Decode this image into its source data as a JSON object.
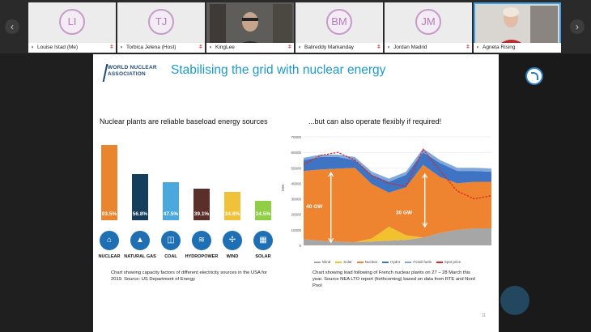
{
  "participants": [
    {
      "initials": "LI",
      "name": "Louise Istad (Me)",
      "muted": true
    },
    {
      "initials": "TJ",
      "name": "Torbica Jelena (Host)",
      "muted": true
    },
    {
      "initials": "",
      "name": "KingLee",
      "muted": true,
      "video": true
    },
    {
      "initials": "BM",
      "name": "Balireddy Markanday",
      "muted": true
    },
    {
      "initials": "JM",
      "name": "Jordan Madrid",
      "muted": true
    },
    {
      "initials": "",
      "name": "Agneta Rising",
      "muted": false,
      "video": true,
      "active": true
    }
  ],
  "nav": {
    "prev_icon": "‹",
    "next_icon": "›"
  },
  "slide": {
    "logo_line1": "WORLD NUCLEAR",
    "logo_line2": "ASSOCIATION",
    "title": "Stabilising the grid with nuclear energy",
    "left_heading": "Nuclear plants are reliable baseload energy sources",
    "right_heading": "...but can also operate flexibly if required!",
    "left_caption": "Chart showing capacity factors of different electricity sources in the USA for 2019. Source: US Department of Energy",
    "right_caption": "Chart showing load following of French nuclear plants on 27 – 28 March this year. Source NEA LTO report (forthcoming) based on data from RTE and Nord Pool",
    "page_number": "11"
  },
  "chart_data": [
    {
      "type": "bar",
      "categories": [
        "NUCLEAR",
        "NATURAL GAS",
        "COAL",
        "HYDROPOWER",
        "WIND",
        "SOLAR"
      ],
      "values": [
        93.5,
        56.8,
        47.5,
        39.1,
        34.8,
        24.5
      ],
      "value_labels": [
        "93.5%",
        "56.8%",
        "47.5%",
        "39.1%",
        "34.8%",
        "24.5%"
      ],
      "colors": [
        "#e8852e",
        "#153e5c",
        "#4aa8dd",
        "#5b2e2a",
        "#efc23a",
        "#8fce45"
      ],
      "icons": [
        "reactor-icon",
        "gas-flame-icon",
        "coal-cart-icon",
        "dam-icon",
        "wind-turbine-icon",
        "solar-panel-icon"
      ],
      "ylim": [
        0,
        100
      ]
    },
    {
      "type": "area",
      "ylabel": "MW",
      "yticks": [
        "0",
        "10000",
        "20000",
        "30000",
        "40000",
        "50000",
        "60000",
        "70000"
      ],
      "ylim": [
        0,
        70000
      ],
      "x_points": 12,
      "series": [
        {
          "name": "Wind",
          "color": "#a6a6a6",
          "values": [
            4000,
            3000,
            2500,
            2000,
            2500,
            3000,
            3500,
            5000,
            8000,
            10000,
            11000,
            11000
          ]
        },
        {
          "name": "Solar",
          "color": "#f2c12e",
          "values": [
            0,
            0,
            0,
            0,
            2000,
            9000,
            3000,
            0,
            0,
            0,
            0,
            0
          ]
        },
        {
          "name": "Nuclear",
          "color": "#ee8330",
          "values": [
            44000,
            46000,
            47000,
            48000,
            35000,
            22000,
            31000,
            47000,
            36000,
            30000,
            30000,
            30000
          ]
        },
        {
          "name": "Hydro",
          "color": "#3f73c4",
          "values": [
            7000,
            8000,
            7500,
            5000,
            6000,
            7000,
            8000,
            8000,
            9000,
            8000,
            7000,
            6500
          ]
        },
        {
          "name": "Fossil fuels",
          "color": "#7fa8dc",
          "values": [
            1500,
            1500,
            1500,
            2000,
            2000,
            2000,
            2000,
            2500,
            2000,
            2000,
            2000,
            2000
          ]
        }
      ],
      "line": {
        "name": "Spot price",
        "color": "#e0241b",
        "values": [
          52000,
          58000,
          60000,
          55000,
          45000,
          40000,
          38000,
          62000,
          48000,
          35000,
          30000,
          32000
        ]
      },
      "annotations": [
        {
          "text": "40 GW"
        },
        {
          "text": "30 GW"
        }
      ]
    }
  ]
}
